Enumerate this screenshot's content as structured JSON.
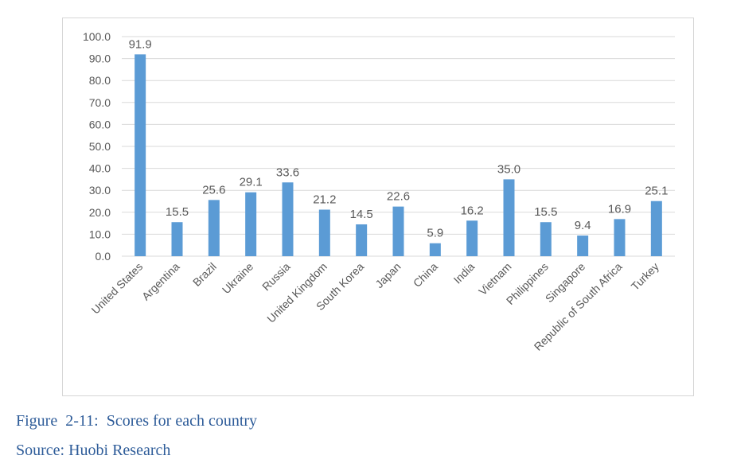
{
  "caption": {
    "figure": "Figure  2-11:  Scores for each country",
    "source": "Source: Huobi Research"
  },
  "chart_data": {
    "type": "bar",
    "categories": [
      "United States",
      "Argentina",
      "Brazil",
      "Ukraine",
      "Russia",
      "United Kingdom",
      "South Korea",
      "Japan",
      "China",
      "India",
      "Vietnam",
      "Philippines",
      "Singapore",
      "Republic of South Africa",
      "Turkey"
    ],
    "values": [
      91.9,
      15.5,
      25.6,
      29.1,
      33.6,
      21.2,
      14.5,
      22.6,
      5.9,
      16.2,
      35.0,
      15.5,
      9.4,
      16.9,
      25.1
    ],
    "value_labels": [
      "91.9",
      "15.5",
      "25.6",
      "29.1",
      "33.6",
      "21.2",
      "14.5",
      "22.6",
      "5.9",
      "16.2",
      "35.0",
      "15.5",
      "9.4",
      "16.9",
      "25.1"
    ],
    "yticks": [
      "0.0",
      "10.0",
      "20.0",
      "30.0",
      "40.0",
      "50.0",
      "60.0",
      "70.0",
      "80.0",
      "90.0",
      "100.0"
    ],
    "ylim": [
      0,
      100
    ],
    "grid": true,
    "bar_color": "#5b9bd5",
    "grid_color": "#d9d9d9",
    "text_color": "#595959"
  }
}
